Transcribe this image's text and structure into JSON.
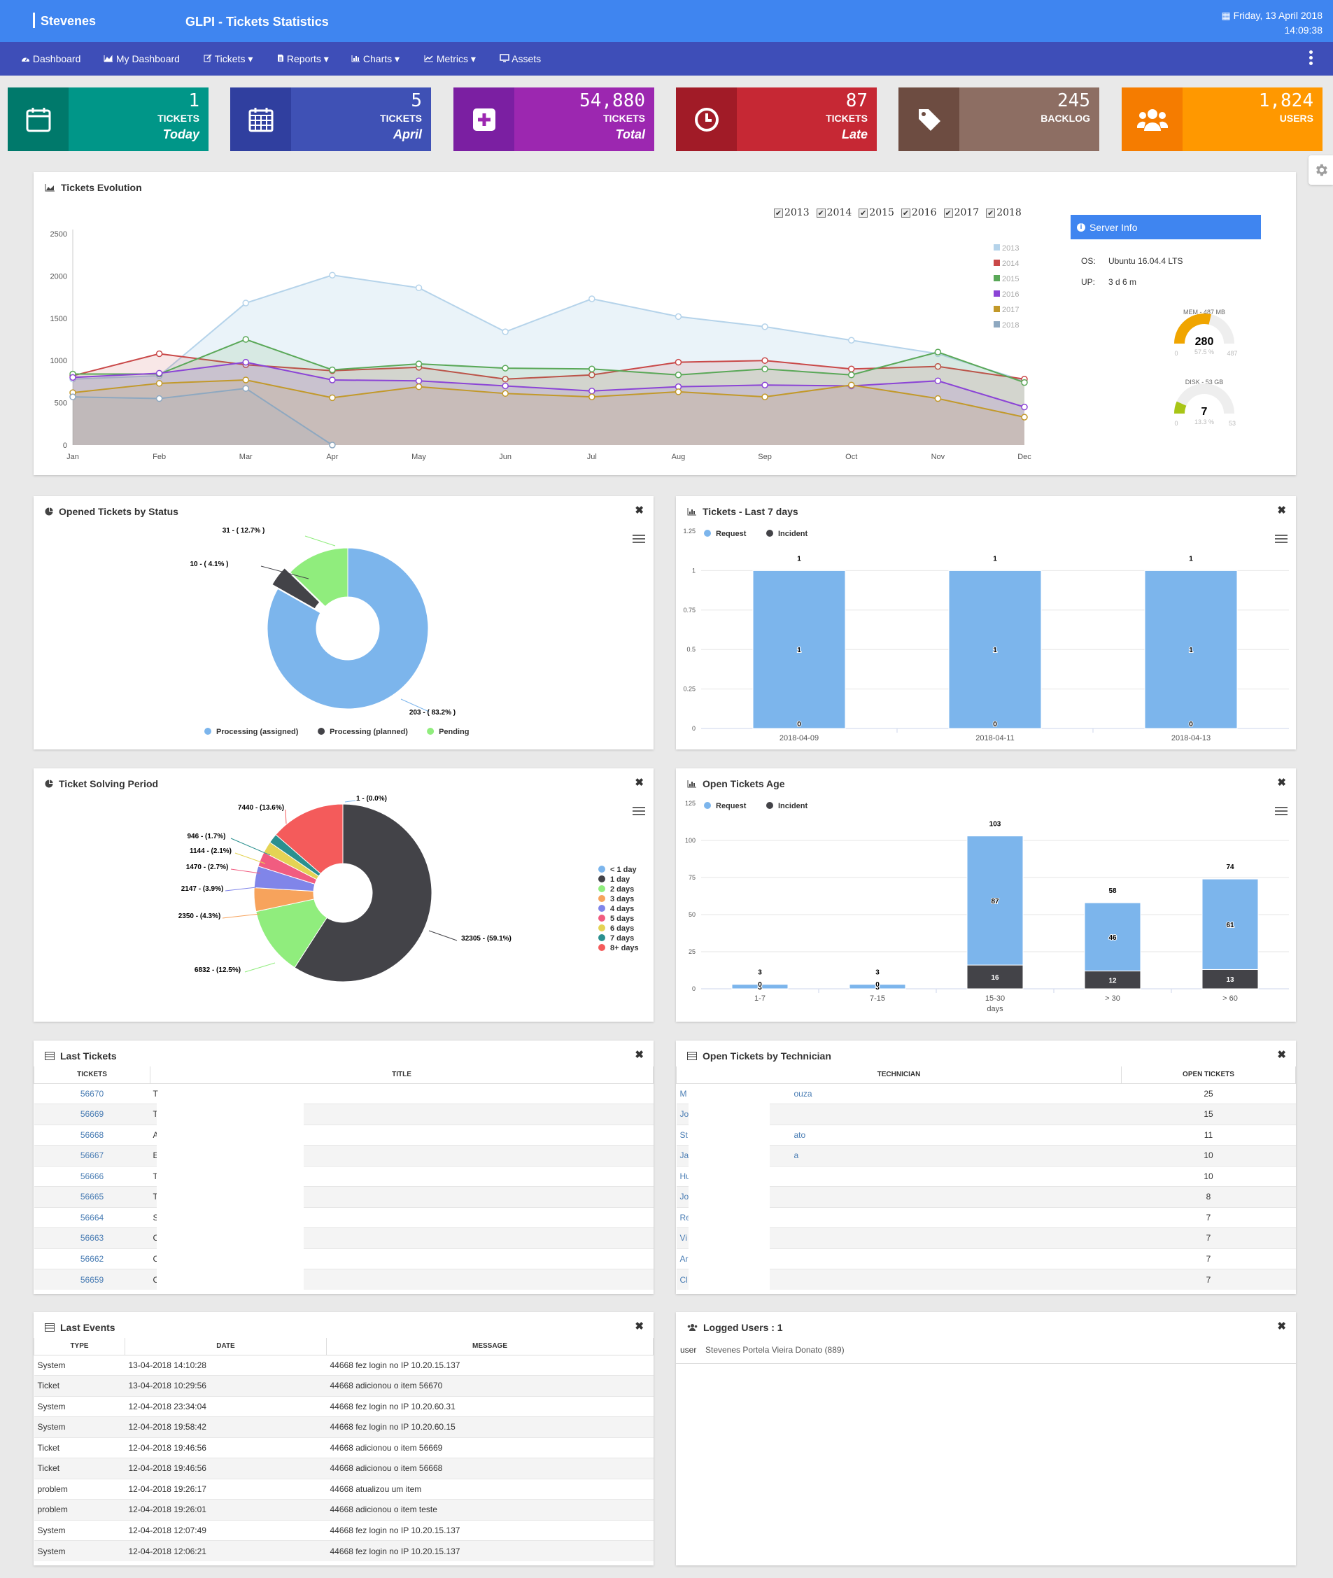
{
  "header": {
    "brand": "Stevenes",
    "title": "GLPI - Tickets Statistics",
    "date": "Friday, 13 April 2018",
    "time": "14:09:38"
  },
  "nav": {
    "items": [
      {
        "label": "Dashboard",
        "icon": "dashboard-icon"
      },
      {
        "label": "My Dashboard",
        "icon": "area-chart-icon"
      },
      {
        "label": "Tickets ▾",
        "icon": "edit-icon"
      },
      {
        "label": "Reports ▾",
        "icon": "file-icon"
      },
      {
        "label": "Charts ▾",
        "icon": "bar-chart-icon"
      },
      {
        "label": "Metrics ▾",
        "icon": "line-chart-icon"
      },
      {
        "label": "Assets",
        "icon": "monitor-icon"
      }
    ]
  },
  "stats": [
    {
      "value": "1",
      "label": "TICKETS",
      "sub": "Today",
      "color": "#009688",
      "dark": "#00796b",
      "icon": "calendar-icon"
    },
    {
      "value": "5",
      "label": "TICKETS",
      "sub": "April",
      "color": "#3f51b5",
      "dark": "#303f9f",
      "icon": "calendar-grid-icon"
    },
    {
      "value": "54,880",
      "label": "TICKETS",
      "sub": "Total",
      "color": "#9c27b0",
      "dark": "#7b1fa2",
      "icon": "plus-square-icon"
    },
    {
      "value": "87",
      "label": "TICKETS",
      "sub": "Late",
      "color": "#c62834",
      "dark": "#a11b27",
      "icon": "clock-icon"
    },
    {
      "value": "245",
      "label": "BACKLOG",
      "sub": "",
      "color": "#8d6e63",
      "dark": "#6d4c41",
      "icon": "tag-icon"
    },
    {
      "value": "1,824",
      "label": "USERS",
      "sub": "",
      "color": "#ff9800",
      "dark": "#f57c00",
      "icon": "users-icon"
    }
  ],
  "evolution": {
    "title": "Tickets Evolution",
    "years": [
      "2013",
      "2014",
      "2015",
      "2016",
      "2017",
      "2018"
    ],
    "server": {
      "title": "Server Info",
      "os_label": "OS:",
      "os": "Ubuntu 16.04.4 LTS",
      "up_label": "UP:",
      "up": "3 d 6 m",
      "mem_label": "MEM - 487 MB",
      "mem_value": "280",
      "mem_pct": "57.5 %",
      "mem_min": "0",
      "mem_max": "487",
      "disk_label": "DISK - 53 GB",
      "disk_value": "7",
      "disk_pct": "13.3 %",
      "disk_min": "0",
      "disk_max": "53"
    }
  },
  "chart_data": [
    {
      "type": "area",
      "title": "Tickets Evolution",
      "x": [
        "Jan",
        "Feb",
        "Mar",
        "Apr",
        "May",
        "Jun",
        "Jul",
        "Aug",
        "Sep",
        "Oct",
        "Nov",
        "Dec"
      ],
      "ylim": [
        0,
        2500
      ],
      "yticks": [
        0,
        500,
        1000,
        1500,
        2000,
        2500
      ],
      "series": [
        {
          "name": "2013",
          "color": "#b5d3ea",
          "values": [
            780,
            820,
            1680,
            2010,
            1860,
            1340,
            1730,
            1520,
            1400,
            1240,
            1080,
            760
          ]
        },
        {
          "name": "2014",
          "color": "#c94848",
          "values": [
            820,
            1080,
            950,
            880,
            920,
            780,
            830,
            980,
            1000,
            900,
            930,
            780
          ]
        },
        {
          "name": "2015",
          "color": "#5aa858",
          "values": [
            840,
            840,
            1250,
            890,
            960,
            910,
            900,
            830,
            900,
            830,
            1100,
            740
          ]
        },
        {
          "name": "2016",
          "color": "#8b44d6",
          "values": [
            800,
            850,
            980,
            770,
            760,
            700,
            640,
            690,
            710,
            700,
            760,
            450
          ]
        },
        {
          "name": "2017",
          "color": "#c2992a",
          "values": [
            620,
            730,
            770,
            560,
            690,
            610,
            570,
            630,
            570,
            710,
            550,
            330
          ]
        },
        {
          "name": "2018",
          "color": "#8ea8c0",
          "values": [
            570,
            550,
            670,
            0,
            null,
            null,
            null,
            null,
            null,
            null,
            null,
            null
          ]
        }
      ]
    },
    {
      "type": "pie",
      "title": "Opened Tickets by Status",
      "labels": [
        "Processing (assigned)",
        "Processing (planned)",
        "Pending"
      ],
      "values": [
        203,
        10,
        31
      ],
      "percents": [
        "83.2%",
        "4.1%",
        "12.7%"
      ],
      "colors": [
        "#7cb5ec",
        "#434348",
        "#90ed7d"
      ],
      "datalabels": [
        "203 - ( 83.2% )",
        "10 - ( 4.1% )",
        "31 - ( 12.7% )"
      ]
    },
    {
      "type": "bar",
      "title": "Tickets - Last 7 days",
      "categories": [
        "2018-04-09",
        "2018-04-11",
        "2018-04-13"
      ],
      "series": [
        {
          "name": "Request",
          "color": "#7cb5ec",
          "values": [
            1,
            1,
            1
          ]
        },
        {
          "name": "Incident",
          "color": "#434348",
          "values": [
            0,
            0,
            0
          ]
        }
      ],
      "totals": [
        1,
        1,
        1
      ],
      "ylim": [
        0,
        1.25
      ],
      "yticks": [
        "0",
        "0.25",
        "0.5",
        "0.75",
        "1",
        "1.25"
      ]
    },
    {
      "type": "pie",
      "title": "Ticket Solving Period",
      "labels": [
        "< 1 day",
        "1 day",
        "2 days",
        "3 days",
        "4 days",
        "5 days",
        "6 days",
        "7 days",
        "8+ days"
      ],
      "values": [
        1,
        32305,
        6832,
        2350,
        2147,
        1470,
        1144,
        946,
        7440
      ],
      "colors": [
        "#7cb5ec",
        "#434348",
        "#90ed7d",
        "#f7a35c",
        "#8085e9",
        "#f15c80",
        "#e4d354",
        "#2b908f",
        "#f45b5b"
      ],
      "datalabels": [
        "1 - (0.0%)",
        "32305 - (59.1%)",
        "6832 - (12.5%)",
        "2350 - (4.3%)",
        "2147 - (3.9%)",
        "1470 - (2.7%)",
        "1144 - (2.1%)",
        "946 - (1.7%)",
        "7440 - (13.6%)"
      ]
    },
    {
      "type": "bar",
      "title": "Open Tickets Age",
      "categories": [
        "1-7",
        "7-15",
        "15-30",
        "> 30",
        "> 60"
      ],
      "xlabel": "days",
      "series": [
        {
          "name": "Request",
          "color": "#7cb5ec",
          "values": [
            3,
            3,
            87,
            46,
            61
          ]
        },
        {
          "name": "Incident",
          "color": "#434348",
          "values": [
            0,
            0,
            16,
            12,
            13
          ]
        }
      ],
      "totals": [
        3,
        3,
        103,
        58,
        74
      ],
      "ylim": [
        0,
        125
      ],
      "yticks": [
        "0",
        "25",
        "50",
        "75",
        "100",
        "125"
      ]
    }
  ],
  "panels": {
    "status": {
      "title": "Opened Tickets by Status"
    },
    "last7": {
      "title": "Tickets - Last 7 days"
    },
    "solving": {
      "title": "Ticket Solving Period"
    },
    "age": {
      "title": "Open Tickets Age"
    },
    "last_tickets": {
      "title": "Last Tickets",
      "col_id": "TICKETS",
      "col_title": "TITLE",
      "rows": [
        {
          "id": "56670",
          "t": "T"
        },
        {
          "id": "56669",
          "t": "T"
        },
        {
          "id": "56668",
          "t": "A"
        },
        {
          "id": "56667",
          "t": "E"
        },
        {
          "id": "56666",
          "t": "T"
        },
        {
          "id": "56665",
          "t": "T"
        },
        {
          "id": "56664",
          "t": "S"
        },
        {
          "id": "56663",
          "t": "C"
        },
        {
          "id": "56662",
          "t": "C"
        },
        {
          "id": "56659",
          "t": "C"
        }
      ]
    },
    "by_tech": {
      "title": "Open Tickets by Technician",
      "col_tech": "TECHNICIAN",
      "col_open": "OPEN TICKETS",
      "rows": [
        {
          "pre": "M",
          "post": "ouza",
          "n": "25"
        },
        {
          "pre": "Jo",
          "post": "",
          "n": "15"
        },
        {
          "pre": "St",
          "post": "ato",
          "n": "11"
        },
        {
          "pre": "Ja",
          "post": "a",
          "n": "10"
        },
        {
          "pre": "Hu",
          "post": "",
          "n": "10"
        },
        {
          "pre": "Jo",
          "post": "",
          "n": "8"
        },
        {
          "pre": "Re",
          "post": "",
          "n": "7"
        },
        {
          "pre": "Vi",
          "post": "",
          "n": "7"
        },
        {
          "pre": "Ar",
          "post": "",
          "n": "7"
        },
        {
          "pre": "Cl",
          "post": "",
          "n": "7"
        }
      ]
    },
    "events": {
      "title": "Last Events",
      "col_type": "TYPE",
      "col_date": "DATE",
      "col_msg": "MESSAGE",
      "rows": [
        {
          "type": "System",
          "date": "13-04-2018 14:10:28",
          "msg": "44668 fez login no IP 10.20.15.137"
        },
        {
          "type": "Ticket",
          "date": "13-04-2018 10:29:56",
          "msg": "44668 adicionou o item 56670"
        },
        {
          "type": "System",
          "date": "12-04-2018 23:34:04",
          "msg": "44668 fez login no IP 10.20.60.31"
        },
        {
          "type": "System",
          "date": "12-04-2018 19:58:42",
          "msg": "44668 fez login no IP 10.20.60.15"
        },
        {
          "type": "Ticket",
          "date": "12-04-2018 19:46:56",
          "msg": "44668 adicionou o item 56669"
        },
        {
          "type": "Ticket",
          "date": "12-04-2018 19:46:56",
          "msg": "44668 adicionou o item 56668"
        },
        {
          "type": "problem",
          "date": "12-04-2018 19:26:17",
          "msg": "44668 atualizou um item"
        },
        {
          "type": "problem",
          "date": "12-04-2018 19:26:01",
          "msg": "44668 adicionou o item teste"
        },
        {
          "type": "System",
          "date": "12-04-2018 12:07:49",
          "msg": "44668 fez login no IP 10.20.15.137"
        },
        {
          "type": "System",
          "date": "12-04-2018 12:06:21",
          "msg": "44668 fez login no IP 10.20.15.137"
        }
      ]
    },
    "logged": {
      "title": "Logged Users : 1",
      "user_label": "user",
      "user_name": "Stevenes Portela Vieira Donato (889)"
    }
  }
}
